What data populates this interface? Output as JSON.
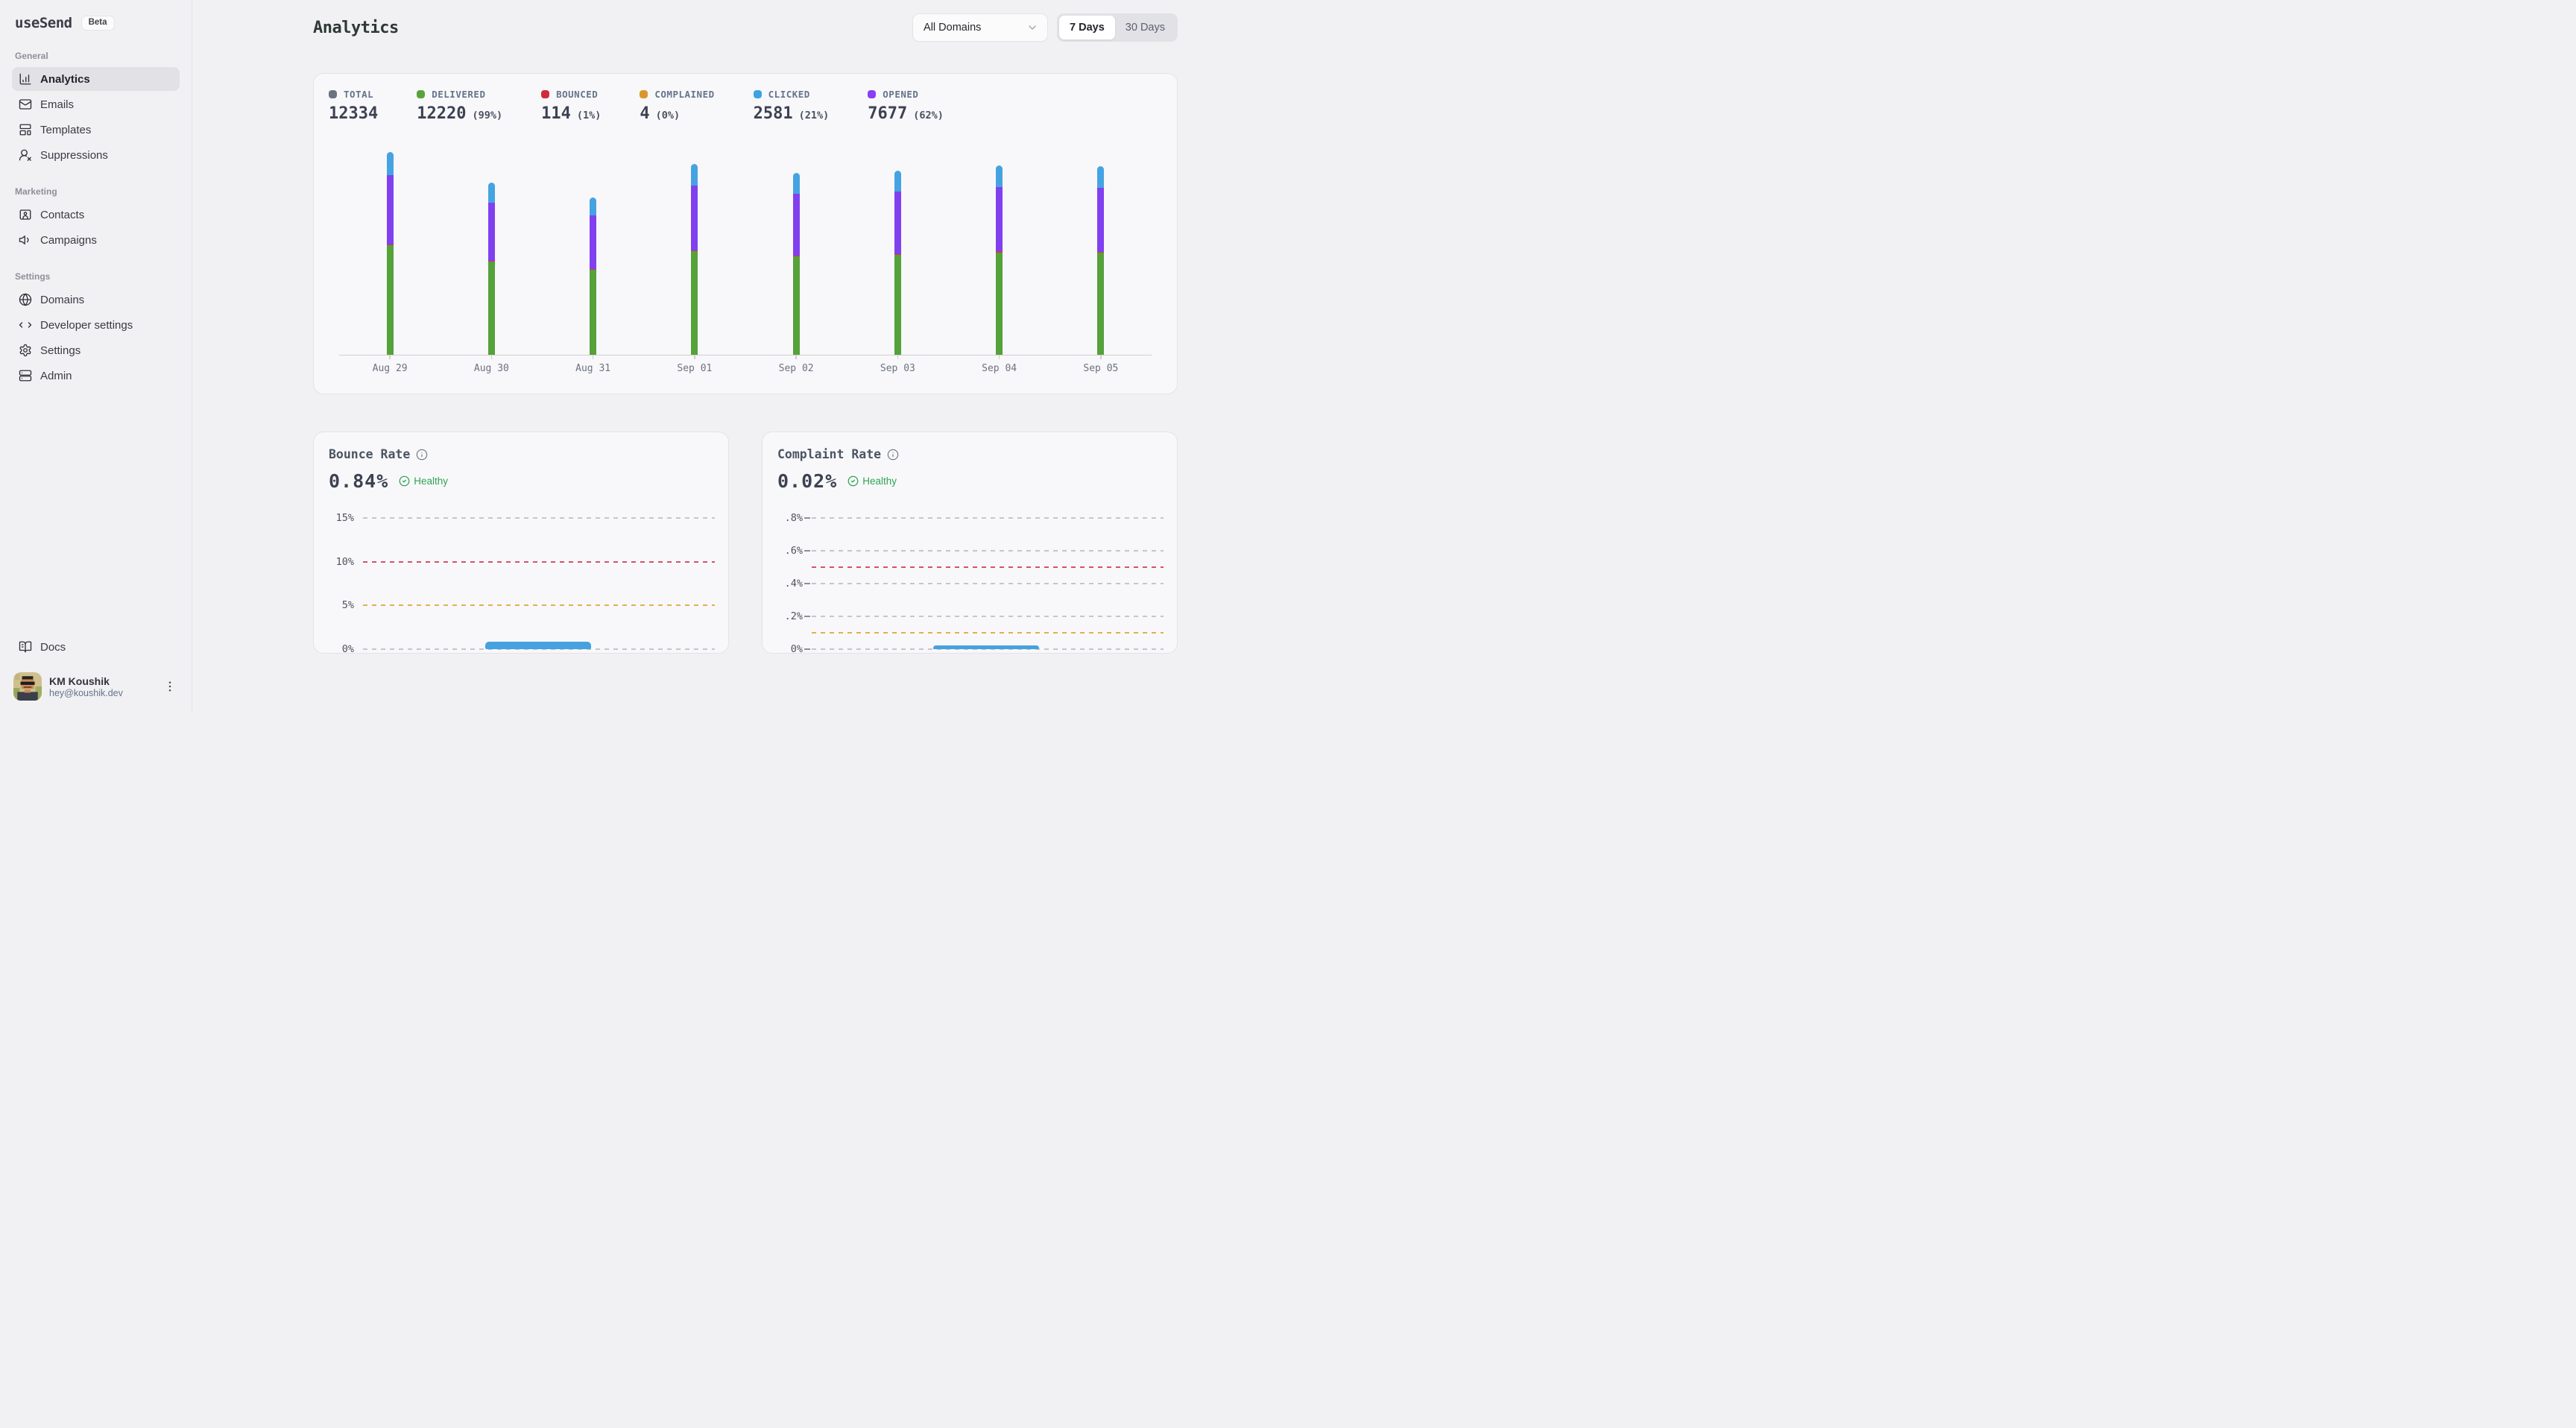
{
  "app": {
    "name": "useSend",
    "badge": "Beta"
  },
  "sidebar": {
    "sections": [
      {
        "label": "General",
        "items": [
          {
            "label": "Analytics",
            "icon": "chart-column",
            "active": true
          },
          {
            "label": "Emails",
            "icon": "mail",
            "active": false
          },
          {
            "label": "Templates",
            "icon": "layout-template",
            "active": false
          },
          {
            "label": "Suppressions",
            "icon": "user-x",
            "active": false
          }
        ]
      },
      {
        "label": "Marketing",
        "items": [
          {
            "label": "Contacts",
            "icon": "contact-card",
            "active": false
          },
          {
            "label": "Campaigns",
            "icon": "speaker",
            "active": false
          }
        ]
      },
      {
        "label": "Settings",
        "items": [
          {
            "label": "Domains",
            "icon": "globe",
            "active": false
          },
          {
            "label": "Developer settings",
            "icon": "code",
            "active": false
          },
          {
            "label": "Settings",
            "icon": "gear",
            "active": false
          },
          {
            "label": "Admin",
            "icon": "server",
            "active": false
          }
        ]
      }
    ],
    "footer": {
      "docs_label": "Docs",
      "user": {
        "name": "KM Koushik",
        "email": "hey@koushik.dev"
      }
    }
  },
  "header": {
    "title": "Analytics",
    "domain_filter": "All Domains",
    "ranges": [
      "7 Days",
      "30 Days"
    ],
    "selected_range": "7 Days"
  },
  "stats": [
    {
      "label": "TOTAL",
      "value": "12334",
      "percent": "",
      "color": "#6b7280"
    },
    {
      "label": "DELIVERED",
      "value": "12220",
      "percent": "(99%)",
      "color": "#59a33c"
    },
    {
      "label": "BOUNCED",
      "value": "114",
      "percent": "(1%)",
      "color": "#cf2b3a"
    },
    {
      "label": "COMPLAINED",
      "value": "4",
      "percent": "(0%)",
      "color": "#d9962f"
    },
    {
      "label": "CLICKED",
      "value": "2581",
      "percent": "(21%)",
      "color": "#3ea2e5"
    },
    {
      "label": "OPENED",
      "value": "7677",
      "percent": "(62%)",
      "color": "#8a3ef5"
    }
  ],
  "chart_data": [
    {
      "id": "email-volume",
      "type": "bar",
      "stacked": true,
      "categories": [
        "Aug 29",
        "Aug 30",
        "Aug 31",
        "Sep 01",
        "Sep 02",
        "Sep 03",
        "Sep 04",
        "Sep 05"
      ],
      "series": [
        {
          "name": "DELIVERED",
          "color": "#55a13a",
          "values": [
            1688,
            1433,
            1309,
            1591,
            1515,
            1536,
            1577,
            1571
          ]
        },
        {
          "name": "BOUNCED",
          "color": "#d03b46",
          "values": [
            16,
            13,
            12,
            15,
            14,
            14,
            15,
            15
          ]
        },
        {
          "name": "OPENED",
          "color": "#8140f0",
          "values": [
            1060,
            900,
            822,
            1000,
            952,
            965,
            991,
            987
          ]
        },
        {
          "name": "CLICKED",
          "color": "#46a3e2",
          "values": [
            357,
            303,
            276,
            336,
            320,
            324,
            333,
            332
          ]
        }
      ],
      "legend_position": "top",
      "grid": false
    },
    {
      "id": "bounce-rate",
      "type": "bar",
      "title": "Bounce Rate",
      "value_label": "0.84%",
      "status": "Healthy",
      "ylim": [
        0,
        15
      ],
      "tick_dash": false,
      "gridlines": [
        {
          "value": 0,
          "label": "0%",
          "color": "#c6c5cb"
        },
        {
          "value": 5,
          "label": "5%",
          "color": "#e0b050"
        },
        {
          "value": 10,
          "label": "10%",
          "color": "#d5526b"
        },
        {
          "value": 15,
          "label": "15%",
          "color": "#c6c5cb"
        }
      ],
      "extra_lines": [],
      "bar": {
        "value": 0.84,
        "color": "#45a2e0",
        "x_left": 0.348,
        "x_width": 0.3
      }
    },
    {
      "id": "complaint-rate",
      "type": "bar",
      "title": "Complaint Rate",
      "value_label": "0.02%",
      "status": "Healthy",
      "ylim": [
        0,
        0.8
      ],
      "tick_dash": true,
      "gridlines": [
        {
          "value": 0,
          "label": "0%",
          "color": "#c6c5cb"
        },
        {
          "value": 0.2,
          "label": ".2%",
          "color": "#c6c5cb"
        },
        {
          "value": 0.4,
          "label": ".4%",
          "color": "#c6c5cb"
        },
        {
          "value": 0.6,
          "label": ".6%",
          "color": "#c6c5cb"
        },
        {
          "value": 0.8,
          "label": ".8%",
          "color": "#c6c5cb"
        }
      ],
      "extra_lines": [
        {
          "value": 0.5,
          "color": "#d5526b"
        },
        {
          "value": 0.1,
          "color": "#e0b050"
        }
      ],
      "bar": {
        "value": 0.02,
        "color": "#45a2e0",
        "x_left": 0.346,
        "x_width": 0.3
      }
    }
  ]
}
